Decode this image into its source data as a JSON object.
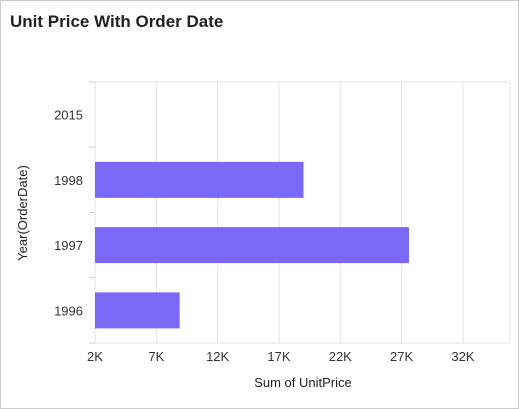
{
  "chart_data": {
    "type": "bar",
    "orientation": "horizontal",
    "title": "Unit Price With Order Date",
    "xlabel": "Sum of UnitPrice",
    "ylabel": "Year(OrderDate)",
    "categories": [
      "2015",
      "1998",
      "1997",
      "1996"
    ],
    "values": [
      0,
      19000,
      27600,
      8900
    ],
    "x_ticks": [
      2000,
      7000,
      12000,
      17000,
      22000,
      27000,
      32000
    ],
    "x_tick_labels": [
      "2K",
      "7K",
      "12K",
      "17K",
      "22K",
      "27K",
      "32K"
    ],
    "xlim": [
      2000,
      36000
    ],
    "grid": true,
    "bar_color": "#7b68f6"
  }
}
